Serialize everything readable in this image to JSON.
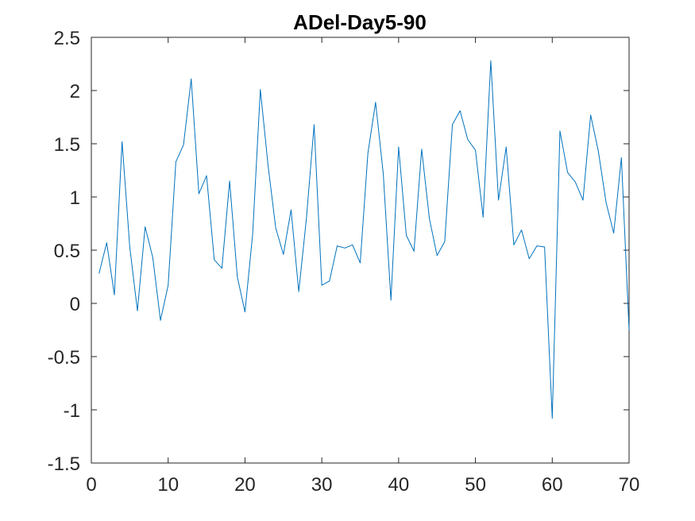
{
  "chart_data": {
    "type": "line",
    "title": "ADel-Day5-90",
    "xlabel": "",
    "ylabel": "",
    "xlim": [
      0,
      70
    ],
    "ylim": [
      -1.5,
      2.5
    ],
    "xticks": [
      0,
      10,
      20,
      30,
      40,
      50,
      60,
      70
    ],
    "yticks": [
      -1.5,
      -1,
      -0.5,
      0,
      0.5,
      1,
      1.5,
      2,
      2.5
    ],
    "xtick_labels": [
      "0",
      "10",
      "20",
      "30",
      "40",
      "50",
      "60",
      "70"
    ],
    "ytick_labels": [
      "-1.5",
      "-1",
      "-0.5",
      "0",
      "0.5",
      "1",
      "1.5",
      "2",
      "2.5"
    ],
    "grid": false,
    "box": true,
    "series": [
      {
        "color": "#0072bd",
        "x": [
          1,
          2,
          3,
          4,
          5,
          6,
          7,
          8,
          9,
          10,
          11,
          12,
          13,
          14,
          15,
          16,
          17,
          18,
          19,
          20,
          21,
          22,
          23,
          24,
          25,
          26,
          27,
          28,
          29,
          30,
          31,
          32,
          33,
          34,
          35,
          36,
          37,
          38,
          39,
          40,
          41,
          42,
          43,
          44,
          45,
          46,
          47,
          48,
          49,
          50,
          51,
          52,
          53,
          54,
          55,
          56,
          57,
          58,
          59,
          60,
          61,
          62,
          63,
          64,
          65,
          66,
          67,
          68,
          69,
          70
        ],
        "y": [
          0.28,
          0.57,
          0.08,
          1.52,
          0.53,
          -0.07,
          0.72,
          0.43,
          -0.16,
          0.17,
          1.33,
          1.49,
          2.11,
          1.03,
          1.2,
          0.41,
          0.33,
          1.15,
          0.25,
          -0.08,
          0.65,
          2.01,
          1.3,
          0.71,
          0.46,
          0.88,
          0.11,
          0.8,
          1.68,
          0.17,
          0.21,
          0.54,
          0.52,
          0.55,
          0.38,
          1.41,
          1.89,
          1.22,
          0.03,
          1.47,
          0.64,
          0.49,
          1.45,
          0.8,
          0.45,
          0.58,
          1.68,
          1.81,
          1.54,
          1.44,
          0.81,
          2.28,
          0.97,
          1.47,
          0.55,
          0.69,
          0.42,
          0.54,
          0.53,
          -1.08,
          1.62,
          1.23,
          1.14,
          0.97,
          1.77,
          1.43,
          0.95,
          0.66,
          1.37,
          -0.25
        ]
      }
    ]
  }
}
